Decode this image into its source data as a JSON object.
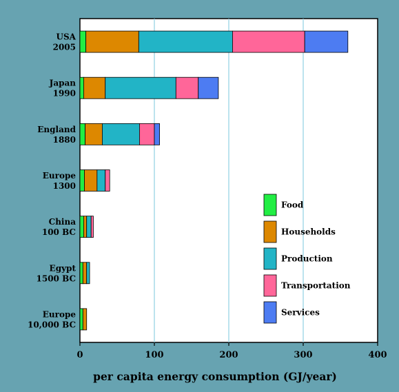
{
  "chart_data": {
    "type": "bar",
    "orientation": "horizontal",
    "stacked": true,
    "title": "",
    "xlabel": "per capita energy consumption (GJ/year)",
    "ylabel": "",
    "xlim": [
      0,
      400
    ],
    "x_ticks": [
      0,
      100,
      200,
      300,
      400
    ],
    "grid": "vertical lines at 100, 200, 300",
    "legend_position": "center-right",
    "categories": [
      [
        "USA",
        "2005"
      ],
      [
        "Japan",
        "1990"
      ],
      [
        "England",
        "1880"
      ],
      [
        "Europe",
        "1300"
      ],
      [
        "China",
        "100 BC"
      ],
      [
        "Egypt",
        "1500 BC"
      ],
      [
        "Europe",
        "10,000 BC"
      ]
    ],
    "series": [
      {
        "name": "Food",
        "color": "#22ee44",
        "values": [
          8,
          5,
          7,
          6,
          5,
          4,
          4
        ]
      },
      {
        "name": "Households",
        "color": "#dd8800",
        "values": [
          71,
          29,
          23,
          17,
          4,
          5,
          5
        ]
      },
      {
        "name": "Production",
        "color": "#22b4c6",
        "values": [
          126,
          95,
          50,
          11,
          6,
          4,
          0
        ]
      },
      {
        "name": "Transportation",
        "color": "#ff6699",
        "values": [
          97,
          30,
          20,
          6,
          3,
          0,
          0
        ]
      },
      {
        "name": "Services",
        "color": "#4d7cf2",
        "values": [
          58,
          27,
          7,
          0,
          0,
          0,
          0
        ]
      }
    ]
  }
}
